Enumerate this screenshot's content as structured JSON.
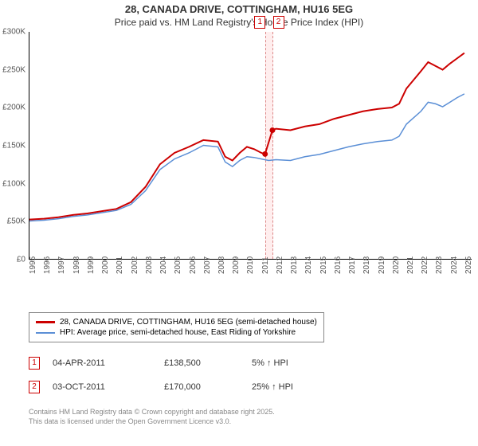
{
  "title_line1": "28, CANADA DRIVE, COTTINGHAM, HU16 5EG",
  "title_line2": "Price paid vs. HM Land Registry's House Price Index (HPI)",
  "chart": {
    "type": "line",
    "xlim": [
      1995,
      2025.5
    ],
    "ylim": [
      0,
      300000
    ],
    "ytick_step": 50000,
    "y_ticks": [
      "£0",
      "£50K",
      "£100K",
      "£150K",
      "£200K",
      "£250K",
      "£300K"
    ],
    "x_ticks": [
      "1995",
      "1996",
      "1997",
      "1998",
      "1999",
      "2000",
      "2001",
      "2002",
      "2003",
      "2004",
      "2005",
      "2006",
      "2007",
      "2008",
      "2009",
      "2010",
      "2011",
      "2012",
      "2013",
      "2014",
      "2015",
      "2016",
      "2017",
      "2018",
      "2019",
      "2020",
      "2021",
      "2022",
      "2023",
      "2024",
      "2025"
    ],
    "band": {
      "start": 2011.25,
      "end": 2011.76
    },
    "band_markers": [
      "1",
      "2"
    ],
    "series": [
      {
        "name": "28, CANADA DRIVE, COTTINGHAM, HU16 5EG (semi-detached house)",
        "color": "#cc0000",
        "width": 2,
        "points": [
          [
            1995,
            52000
          ],
          [
            1996,
            53000
          ],
          [
            1997,
            55000
          ],
          [
            1998,
            58000
          ],
          [
            1999,
            60000
          ],
          [
            2000,
            63000
          ],
          [
            2001,
            66000
          ],
          [
            2002,
            75000
          ],
          [
            2003,
            95000
          ],
          [
            2004,
            125000
          ],
          [
            2005,
            140000
          ],
          [
            2006,
            148000
          ],
          [
            2007,
            157000
          ],
          [
            2008,
            155000
          ],
          [
            2008.5,
            135000
          ],
          [
            2009,
            130000
          ],
          [
            2009.5,
            140000
          ],
          [
            2010,
            148000
          ],
          [
            2010.5,
            145000
          ],
          [
            2011,
            140000
          ],
          [
            2011.25,
            138500
          ],
          [
            2011.76,
            170000
          ],
          [
            2012,
            172000
          ],
          [
            2013,
            170000
          ],
          [
            2014,
            175000
          ],
          [
            2015,
            178000
          ],
          [
            2016,
            185000
          ],
          [
            2017,
            190000
          ],
          [
            2018,
            195000
          ],
          [
            2019,
            198000
          ],
          [
            2020,
            200000
          ],
          [
            2020.5,
            205000
          ],
          [
            2021,
            225000
          ],
          [
            2022,
            248000
          ],
          [
            2022.5,
            260000
          ],
          [
            2023,
            255000
          ],
          [
            2023.5,
            250000
          ],
          [
            2024,
            258000
          ],
          [
            2024.5,
            265000
          ],
          [
            2025,
            272000
          ]
        ],
        "dots": [
          [
            2011.25,
            138500
          ],
          [
            2011.76,
            170000
          ]
        ]
      },
      {
        "name": "HPI: Average price, semi-detached house, East Riding of Yorkshire",
        "color": "#5b8fd6",
        "width": 1.5,
        "points": [
          [
            1995,
            50000
          ],
          [
            1996,
            51000
          ],
          [
            1997,
            53000
          ],
          [
            1998,
            56000
          ],
          [
            1999,
            58000
          ],
          [
            2000,
            61000
          ],
          [
            2001,
            64000
          ],
          [
            2002,
            72000
          ],
          [
            2003,
            90000
          ],
          [
            2004,
            118000
          ],
          [
            2005,
            132000
          ],
          [
            2006,
            140000
          ],
          [
            2007,
            150000
          ],
          [
            2008,
            148000
          ],
          [
            2008.5,
            128000
          ],
          [
            2009,
            122000
          ],
          [
            2009.5,
            130000
          ],
          [
            2010,
            135000
          ],
          [
            2010.5,
            134000
          ],
          [
            2011,
            132000
          ],
          [
            2011.5,
            130000
          ],
          [
            2012,
            131000
          ],
          [
            2013,
            130000
          ],
          [
            2014,
            135000
          ],
          [
            2015,
            138000
          ],
          [
            2016,
            143000
          ],
          [
            2017,
            148000
          ],
          [
            2018,
            152000
          ],
          [
            2019,
            155000
          ],
          [
            2020,
            157000
          ],
          [
            2020.5,
            162000
          ],
          [
            2021,
            178000
          ],
          [
            2022,
            195000
          ],
          [
            2022.5,
            207000
          ],
          [
            2023,
            205000
          ],
          [
            2023.5,
            201000
          ],
          [
            2024,
            207000
          ],
          [
            2024.5,
            213000
          ],
          [
            2025,
            218000
          ]
        ]
      }
    ]
  },
  "legend": {
    "items": [
      {
        "color": "#cc0000",
        "label": "28, CANADA DRIVE, COTTINGHAM, HU16 5EG (semi-detached house)"
      },
      {
        "color": "#5b8fd6",
        "label": "HPI: Average price, semi-detached house, East Riding of Yorkshire"
      }
    ]
  },
  "transactions": [
    {
      "n": "1",
      "date": "04-APR-2011",
      "price": "£138,500",
      "pct": "5% ↑ HPI"
    },
    {
      "n": "2",
      "date": "03-OCT-2011",
      "price": "£170,000",
      "pct": "25% ↑ HPI"
    }
  ],
  "footer_line1": "Contains HM Land Registry data © Crown copyright and database right 2025.",
  "footer_line2": "This data is licensed under the Open Government Licence v3.0."
}
